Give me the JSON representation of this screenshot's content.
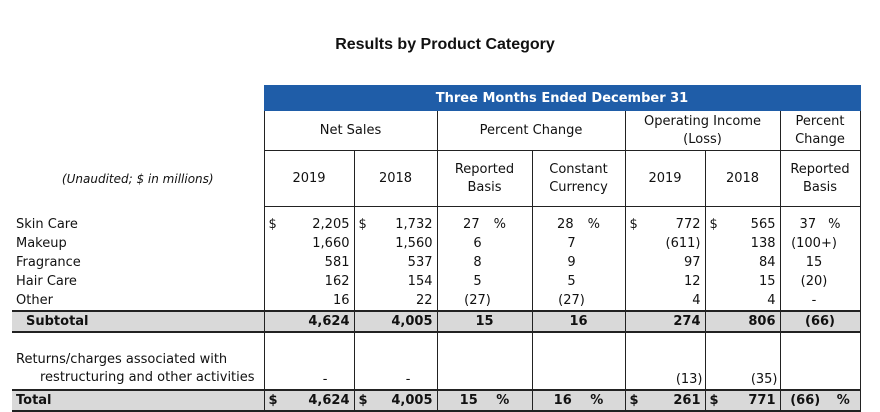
{
  "title": "Results by Product Category",
  "banner": "Three Months Ended December 31",
  "note": "(Unaudited; $ in millions)",
  "headers": {
    "net_sales": "Net Sales",
    "percent_change": "Percent Change",
    "op_income": "Operating Income",
    "op_income_sub": "(Loss)",
    "percent_change2a": "Percent",
    "percent_change2b": "Change",
    "y2019": "2019",
    "y2018": "2018",
    "reported": "Reported",
    "basis": "Basis",
    "constant": "Constant",
    "currency": "Currency",
    "y2019b": "2019",
    "y2018b": "2018",
    "reported2": "Reported",
    "basis2": "Basis"
  },
  "rows": [
    {
      "label": "Skin Care",
      "d1": "$",
      "ns2019": "2,205",
      "d2": "$",
      "ns2018": "1,732",
      "rep": "27",
      "rep_sym": "%",
      "cc": "28",
      "cc_sym": "%",
      "d3": "$",
      "oi2019": "772",
      "d4": "$",
      "oi2018": "565",
      "pc": "37",
      "pc_sym": "%"
    },
    {
      "label": "Makeup",
      "d1": "",
      "ns2019": "1,660",
      "d2": "",
      "ns2018": "1,560",
      "rep": "6",
      "rep_sym": "",
      "cc": "7",
      "cc_sym": "",
      "d3": "",
      "oi2019": "(611)",
      "d4": "",
      "oi2018": "138",
      "pc": "(100+)",
      "pc_sym": ""
    },
    {
      "label": "Fragrance",
      "d1": "",
      "ns2019": "581",
      "d2": "",
      "ns2018": "537",
      "rep": "8",
      "rep_sym": "",
      "cc": "9",
      "cc_sym": "",
      "d3": "",
      "oi2019": "97",
      "d4": "",
      "oi2018": "84",
      "pc": "15",
      "pc_sym": ""
    },
    {
      "label": "Hair Care",
      "d1": "",
      "ns2019": "162",
      "d2": "",
      "ns2018": "154",
      "rep": "5",
      "rep_sym": "",
      "cc": "5",
      "cc_sym": "",
      "d3": "",
      "oi2019": "12",
      "d4": "",
      "oi2018": "15",
      "pc": "(20)",
      "pc_sym": ""
    },
    {
      "label": "Other",
      "d1": "",
      "ns2019": "16",
      "d2": "",
      "ns2018": "22",
      "rep": "(27)",
      "rep_sym": "",
      "cc": "(27)",
      "cc_sym": "",
      "d3": "",
      "oi2019": "4",
      "d4": "",
      "oi2018": "4",
      "pc": "-",
      "pc_sym": ""
    }
  ],
  "subtotal": {
    "label": "Subtotal",
    "ns2019": "4,624",
    "ns2018": "4,005",
    "rep": "15",
    "cc": "16",
    "oi2019": "274",
    "oi2018": "806",
    "pc": "(66)"
  },
  "restructuring": {
    "label1": "Returns/charges associated with",
    "label2": "restructuring and other activities",
    "ns2019": "-",
    "ns2018": "-",
    "oi2019": "(13)",
    "oi2018": "(35)"
  },
  "total": {
    "label": "Total",
    "d1": "$",
    "ns2019": "4,624",
    "d2": "$",
    "ns2018": "4,005",
    "rep": "15",
    "rep_sym": "%",
    "cc": "16",
    "cc_sym": "%",
    "d3": "$",
    "oi2019": "261",
    "d4": "$",
    "oi2018": "771",
    "pc": "(66)",
    "pc_sym": "%"
  }
}
